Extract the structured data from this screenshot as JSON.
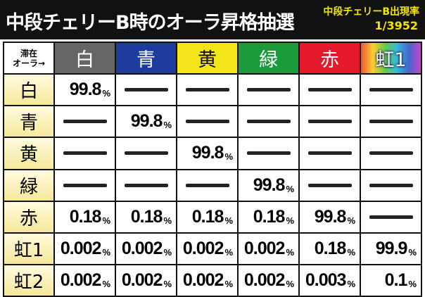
{
  "header": {
    "title": "中段チェリーB時のオーラ昇格抽選",
    "rate_label": "中段チェリーB出現率",
    "rate": "1/3952"
  },
  "table": {
    "corner": [
      "滞在",
      "オーラ→"
    ],
    "columns": [
      "白",
      "青",
      "黄",
      "緑",
      "赤",
      "虹1"
    ],
    "rows": [
      {
        "label": "白",
        "cells": [
          {
            "value": "99.8",
            "unit": "%"
          },
          null,
          null,
          null,
          null,
          null
        ]
      },
      {
        "label": "青",
        "cells": [
          null,
          {
            "value": "99.8",
            "unit": "%"
          },
          null,
          null,
          null,
          null
        ]
      },
      {
        "label": "黄",
        "cells": [
          null,
          null,
          {
            "value": "99.8",
            "unit": "%"
          },
          null,
          null,
          null
        ]
      },
      {
        "label": "緑",
        "cells": [
          null,
          null,
          null,
          {
            "value": "99.8",
            "unit": "%"
          },
          null,
          null
        ]
      },
      {
        "label": "赤",
        "cells": [
          {
            "value": "0.18",
            "unit": "%"
          },
          {
            "value": "0.18",
            "unit": "%"
          },
          {
            "value": "0.18",
            "unit": "%"
          },
          {
            "value": "0.18",
            "unit": "%"
          },
          {
            "value": "99.8",
            "unit": "%"
          },
          null
        ]
      },
      {
        "label": "虹1",
        "cells": [
          {
            "value": "0.002",
            "unit": "%"
          },
          {
            "value": "0.002",
            "unit": "%"
          },
          {
            "value": "0.002",
            "unit": "%"
          },
          {
            "value": "0.002",
            "unit": "%"
          },
          {
            "value": "0.18",
            "unit": "%"
          },
          {
            "value": "99.9",
            "unit": "%"
          }
        ]
      },
      {
        "label": "虹2",
        "cells": [
          {
            "value": "0.002",
            "unit": "%"
          },
          {
            "value": "0.002",
            "unit": "%"
          },
          {
            "value": "0.002",
            "unit": "%"
          },
          {
            "value": "0.002",
            "unit": "%"
          },
          {
            "value": "0.003",
            "unit": "%"
          },
          {
            "value": "0.1",
            "unit": "%"
          }
        ]
      }
    ]
  }
}
